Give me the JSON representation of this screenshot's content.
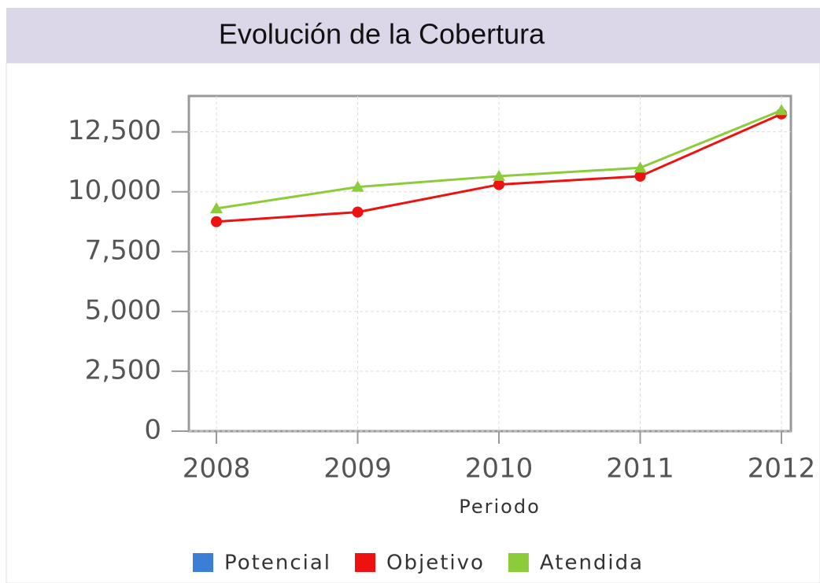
{
  "chart_data": {
    "type": "line",
    "title": "Evolución de la Cobertura",
    "x_label": "Periodo",
    "categories": [
      "2008",
      "2009",
      "2010",
      "2011",
      "2012"
    ],
    "series": [
      {
        "name": "Potencial",
        "color": "#3a7fd5",
        "values": [
          null,
          null,
          null,
          null,
          null
        ]
      },
      {
        "name": "Objetivo",
        "color": "#ee1111",
        "values": [
          8750,
          9150,
          10300,
          10650,
          13250
        ]
      },
      {
        "name": "Atendida",
        "color": "#8ccc3a",
        "values": [
          9300,
          10200,
          10650,
          11000,
          13400
        ]
      }
    ],
    "ylim": [
      0,
      14000
    ],
    "yticks": [
      0,
      {
        "value": 2500,
        "label": "2,500"
      },
      {
        "value": 5000,
        "label": "5,000"
      },
      {
        "value": 7500,
        "label": "7,500"
      },
      {
        "value": 10000,
        "label": "10,000"
      },
      {
        "value": 12500,
        "label": "12,500"
      }
    ],
    "grid": true,
    "legend": "bottom"
  }
}
